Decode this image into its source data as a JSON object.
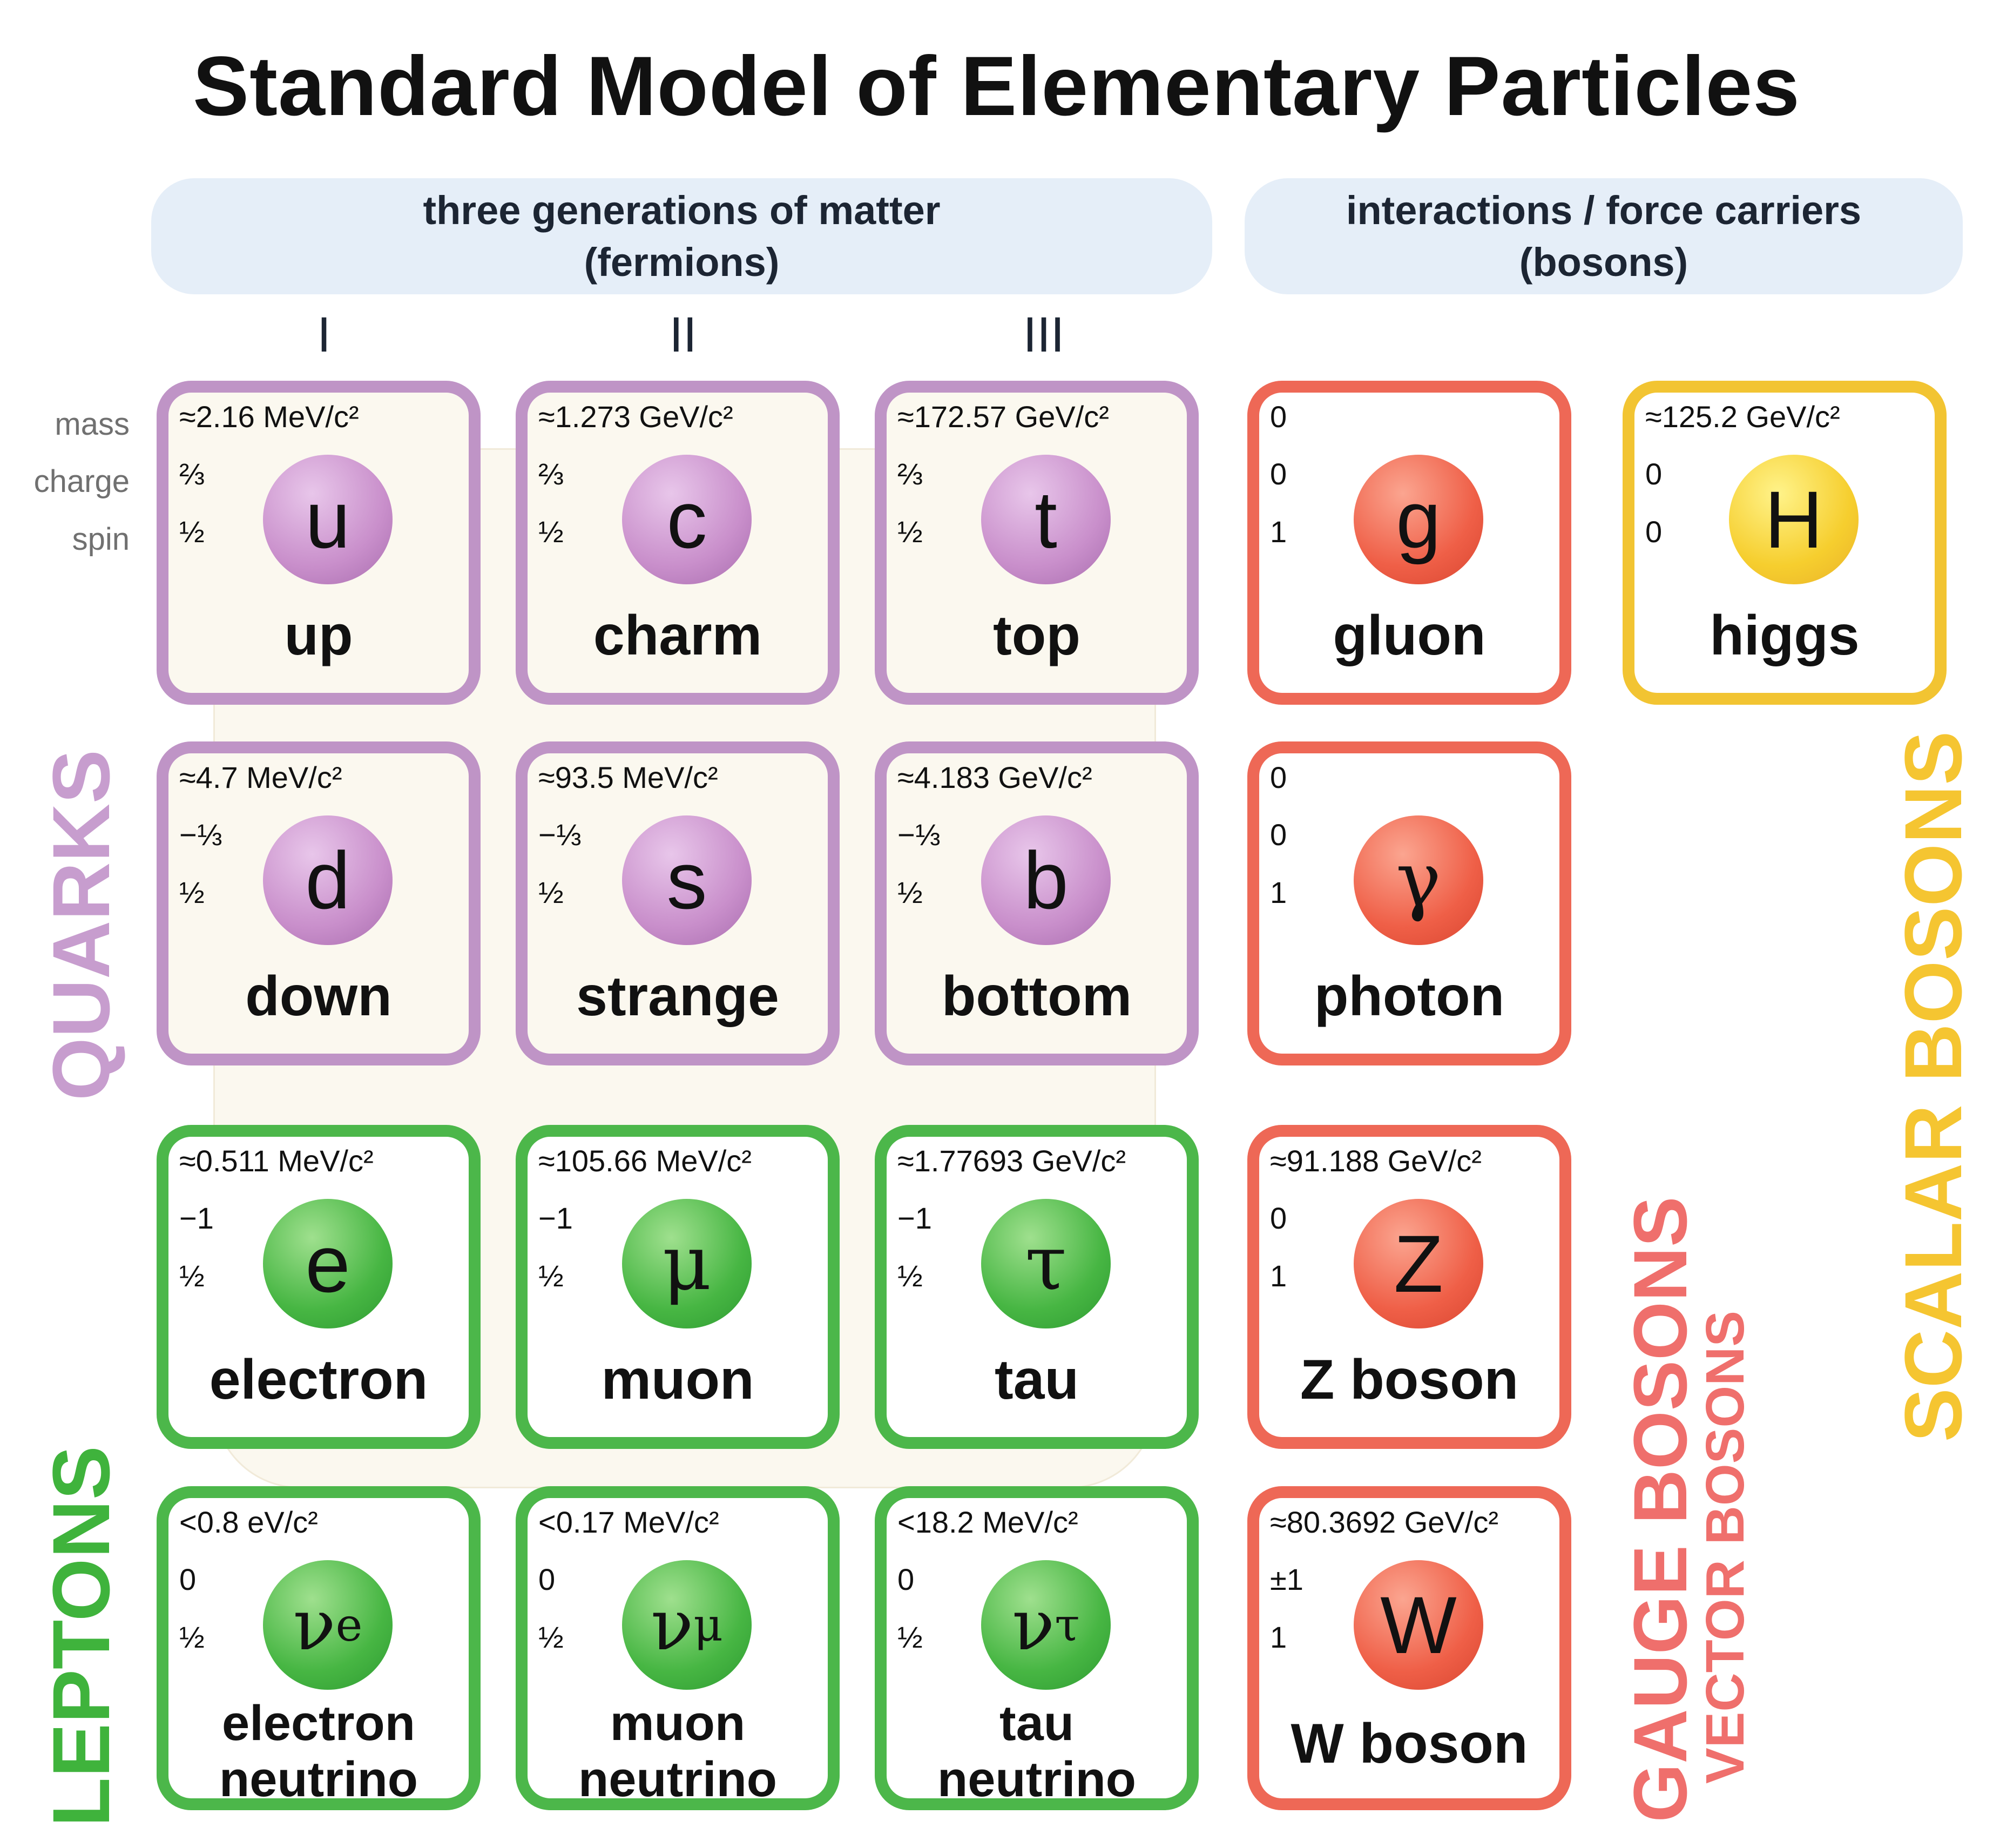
{
  "title": "Standard Model of Elementary Particles",
  "headers": {
    "fermions": {
      "line1": "three generations of matter",
      "line2": "(fermions)"
    },
    "bosons": {
      "line1": "interactions / force carriers",
      "line2": "(bosons)"
    }
  },
  "generations": [
    "I",
    "II",
    "III"
  ],
  "row_labels": {
    "mass": "mass",
    "charge": "charge",
    "spin": "spin"
  },
  "side_labels": {
    "quarks": "QUARKS",
    "leptons": "LEPTONS",
    "gauge": "GAUGE BOSONS",
    "vector": "VECTOR BOSONS",
    "scalar": "SCALAR BOSONS"
  },
  "colors": {
    "quark": "#bf94c6",
    "lepton": "#4cb74a",
    "gauge": "#ee6856",
    "scalar": "#f2c432"
  },
  "particles": {
    "up": {
      "mass": "≈2.16 MeV/c²",
      "charge": "⅔",
      "spin": "½",
      "symbol": "u",
      "name": "up"
    },
    "charm": {
      "mass": "≈1.273 GeV/c²",
      "charge": "⅔",
      "spin": "½",
      "symbol": "c",
      "name": "charm"
    },
    "top": {
      "mass": "≈172.57 GeV/c²",
      "charge": "⅔",
      "spin": "½",
      "symbol": "t",
      "name": "top"
    },
    "gluon": {
      "mass": "0",
      "charge": "0",
      "spin": "1",
      "symbol": "g",
      "name": "gluon"
    },
    "higgs": {
      "mass": "≈125.2 GeV/c²",
      "charge": "0",
      "spin": "0",
      "symbol": "H",
      "name": "higgs"
    },
    "down": {
      "mass": "≈4.7 MeV/c²",
      "charge": "−⅓",
      "spin": "½",
      "symbol": "d",
      "name": "down"
    },
    "strange": {
      "mass": "≈93.5 MeV/c²",
      "charge": "−⅓",
      "spin": "½",
      "symbol": "s",
      "name": "strange"
    },
    "bottom": {
      "mass": "≈4.183 GeV/c²",
      "charge": "−⅓",
      "spin": "½",
      "symbol": "b",
      "name": "bottom"
    },
    "photon": {
      "mass": "0",
      "charge": "0",
      "spin": "1",
      "symbol": "γ",
      "name": "photon"
    },
    "electron": {
      "mass": "≈0.511 MeV/c²",
      "charge": "−1",
      "spin": "½",
      "symbol": "e",
      "name": "electron"
    },
    "muon": {
      "mass": "≈105.66 MeV/c²",
      "charge": "−1",
      "spin": "½",
      "symbol": "μ",
      "name": "muon"
    },
    "tau": {
      "mass": "≈1.77693 GeV/c²",
      "charge": "−1",
      "spin": "½",
      "symbol": "τ",
      "name": "tau"
    },
    "zboson": {
      "mass": "≈91.188 GeV/c²",
      "charge": "0",
      "spin": "1",
      "symbol": "Z",
      "name": "Z boson"
    },
    "nu_e": {
      "mass": "<0.8 eV/c²",
      "charge": "0",
      "spin": "½",
      "symbol": "ν",
      "sub": "e",
      "name_line1": "electron",
      "name_line2": "neutrino"
    },
    "nu_mu": {
      "mass": "<0.17 MeV/c²",
      "charge": "0",
      "spin": "½",
      "symbol": "ν",
      "sub": "μ",
      "name_line1": "muon",
      "name_line2": "neutrino"
    },
    "nu_tau": {
      "mass": "<18.2 MeV/c²",
      "charge": "0",
      "spin": "½",
      "symbol": "ν",
      "sub": "τ",
      "name_line1": "tau",
      "name_line2": "neutrino"
    },
    "wboson": {
      "mass": "≈80.3692 GeV/c²",
      "charge": "±1",
      "spin": "1",
      "symbol": "W",
      "name": "W boson"
    }
  }
}
